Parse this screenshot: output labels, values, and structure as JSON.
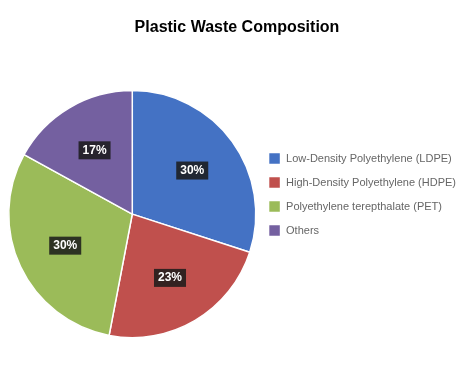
{
  "chart_data": {
    "type": "pie",
    "title": "Plastic Waste Composition",
    "categories": [
      "Low-Density Polyethylene (LDPE)",
      "High-Density Polyethylene (HDPE)",
      "Polyethylene terepthalate (PET)",
      "Others"
    ],
    "values": [
      30,
      23,
      30,
      17
    ],
    "value_labels": [
      "30%",
      "23%",
      "30%",
      "17%"
    ],
    "colors": [
      "#4472C4",
      "#C0504D",
      "#9BBB59",
      "#7460A0"
    ],
    "data_labels": true,
    "legend": "right"
  }
}
